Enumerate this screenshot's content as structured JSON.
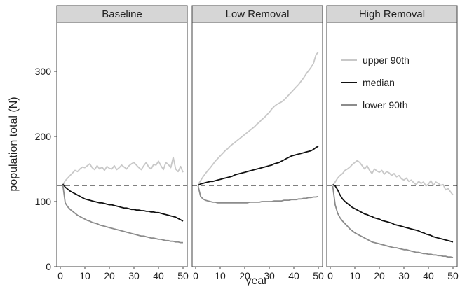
{
  "chart_data": {
    "type": "line",
    "xlabel": "year",
    "ylabel": "population total (N)",
    "xlim": [
      0,
      50
    ],
    "ylim": [
      0,
      350
    ],
    "x_ticks": [
      0,
      10,
      20,
      30,
      40,
      50
    ],
    "y_ticks": [
      0,
      100,
      200,
      300
    ],
    "reference_line": {
      "y": 125,
      "style": "dashed"
    },
    "legend": {
      "placement": "top-right of third panel",
      "entries": [
        "upper 90th",
        "median",
        "lower 90th"
      ]
    },
    "series_colors": {
      "upper": "#c8c8c8",
      "median": "#111111",
      "lower": "#8c8c8c"
    },
    "x": [
      1,
      2,
      3,
      4,
      5,
      6,
      7,
      8,
      9,
      10,
      11,
      12,
      13,
      14,
      15,
      16,
      17,
      18,
      19,
      20,
      21,
      22,
      23,
      24,
      25,
      26,
      27,
      28,
      29,
      30,
      31,
      32,
      33,
      34,
      35,
      36,
      37,
      38,
      39,
      40,
      41,
      42,
      43,
      44,
      45,
      46,
      47,
      48,
      49,
      50
    ],
    "panels": [
      {
        "title": "Baseline",
        "series": [
          {
            "name": "upper 90th",
            "values": [
              125,
              132,
              136,
              140,
              144,
              148,
              146,
              150,
              153,
              152,
              155,
              158,
              152,
              149,
              155,
              150,
              153,
              148,
              154,
              151,
              150,
              155,
              149,
              152,
              156,
              153,
              150,
              155,
              158,
              160,
              156,
              152,
              149,
              155,
              160,
              153,
              150,
              157,
              156,
              162,
              155,
              149,
              160,
              157,
              152,
              168,
              150,
              146,
              154,
              145
            ]
          },
          {
            "name": "median",
            "values": [
              127,
              122,
              119,
              116,
              114,
              112,
              110,
              108,
              106,
              104,
              103,
              102,
              101,
              100,
              99,
              98,
              98,
              97,
              96,
              95,
              95,
              94,
              93,
              92,
              91,
              90,
              90,
              89,
              88,
              88,
              87,
              87,
              86,
              86,
              85,
              85,
              84,
              84,
              83,
              83,
              82,
              81,
              80,
              79,
              78,
              77,
              76,
              74,
              72,
              70
            ]
          },
          {
            "name": "lower 90th",
            "values": [
              126,
              98,
              92,
              88,
              85,
              82,
              79,
              77,
              75,
              73,
              71,
              70,
              68,
              67,
              66,
              64,
              63,
              62,
              61,
              60,
              59,
              58,
              57,
              56,
              55,
              54,
              53,
              52,
              51,
              50,
              49,
              48,
              47,
              47,
              46,
              45,
              44,
              44,
              43,
              42,
              42,
              41,
              40,
              40,
              39,
              39,
              38,
              38,
              37,
              37
            ]
          }
        ]
      },
      {
        "title": "Low Removal",
        "series": [
          {
            "name": "upper 90th",
            "values": [
              126,
              132,
              138,
              143,
              148,
              152,
              157,
              162,
              166,
              170,
              174,
              178,
              181,
              185,
              188,
              191,
              194,
              197,
              200,
              203,
              206,
              209,
              212,
              215,
              219,
              222,
              226,
              229,
              233,
              237,
              242,
              246,
              249,
              251,
              253,
              256,
              260,
              264,
              268,
              272,
              276,
              280,
              285,
              290,
              296,
              301,
              306,
              312,
              325,
              330
            ]
          },
          {
            "name": "median",
            "values": [
              125,
              127,
              128,
              129,
              130,
              131,
              131,
              132,
              133,
              134,
              135,
              136,
              137,
              138,
              139,
              141,
              142,
              143,
              144,
              145,
              146,
              147,
              148,
              149,
              150,
              151,
              152,
              153,
              154,
              155,
              156,
              158,
              159,
              160,
              162,
              164,
              166,
              168,
              170,
              171,
              172,
              173,
              174,
              175,
              176,
              177,
              178,
              180,
              183,
              185
            ]
          },
          {
            "name": "lower 90th",
            "values": [
              124,
              108,
              104,
              102,
              101,
              100,
              99,
              99,
              98,
              98,
              98,
              98,
              98,
              98,
              98,
              98,
              98,
              98,
              98,
              98,
              98,
              99,
              99,
              99,
              99,
              99,
              100,
              100,
              100,
              100,
              100,
              101,
              101,
              101,
              101,
              102,
              102,
              102,
              103,
              103,
              103,
              104,
              104,
              105,
              105,
              106,
              106,
              107,
              107,
              108
            ]
          }
        ]
      },
      {
        "title": "High Removal",
        "series": [
          {
            "name": "upper 90th",
            "values": [
              125,
              130,
              136,
              140,
              143,
              148,
              150,
              153,
              157,
              160,
              163,
              160,
              155,
              150,
              155,
              148,
              143,
              150,
              147,
              145,
              148,
              142,
              146,
              144,
              140,
              143,
              138,
              140,
              135,
              133,
              136,
              131,
              133,
              129,
              126,
              131,
              128,
              130,
              124,
              127,
              132,
              125,
              130,
              128,
              125,
              126,
              118,
              120,
              115,
              110
            ]
          },
          {
            "name": "median",
            "values": [
              126,
              124,
              118,
              110,
              104,
              100,
              97,
              94,
              91,
              89,
              87,
              85,
              83,
              81,
              80,
              78,
              77,
              75,
              74,
              73,
              71,
              70,
              69,
              68,
              67,
              65,
              64,
              63,
              62,
              61,
              60,
              59,
              58,
              57,
              56,
              55,
              53,
              52,
              50,
              49,
              48,
              46,
              45,
              44,
              43,
              42,
              41,
              40,
              39,
              38
            ]
          },
          {
            "name": "lower 90th",
            "values": [
              124,
              95,
              82,
              75,
              70,
              66,
              62,
              58,
              55,
              52,
              50,
              48,
              46,
              44,
              42,
              40,
              38,
              37,
              36,
              35,
              34,
              33,
              32,
              31,
              30,
              29,
              29,
              28,
              27,
              26,
              26,
              25,
              24,
              23,
              22,
              22,
              21,
              20,
              20,
              19,
              19,
              18,
              18,
              17,
              17,
              16,
              16,
              15,
              15,
              14
            ]
          }
        ]
      }
    ]
  }
}
